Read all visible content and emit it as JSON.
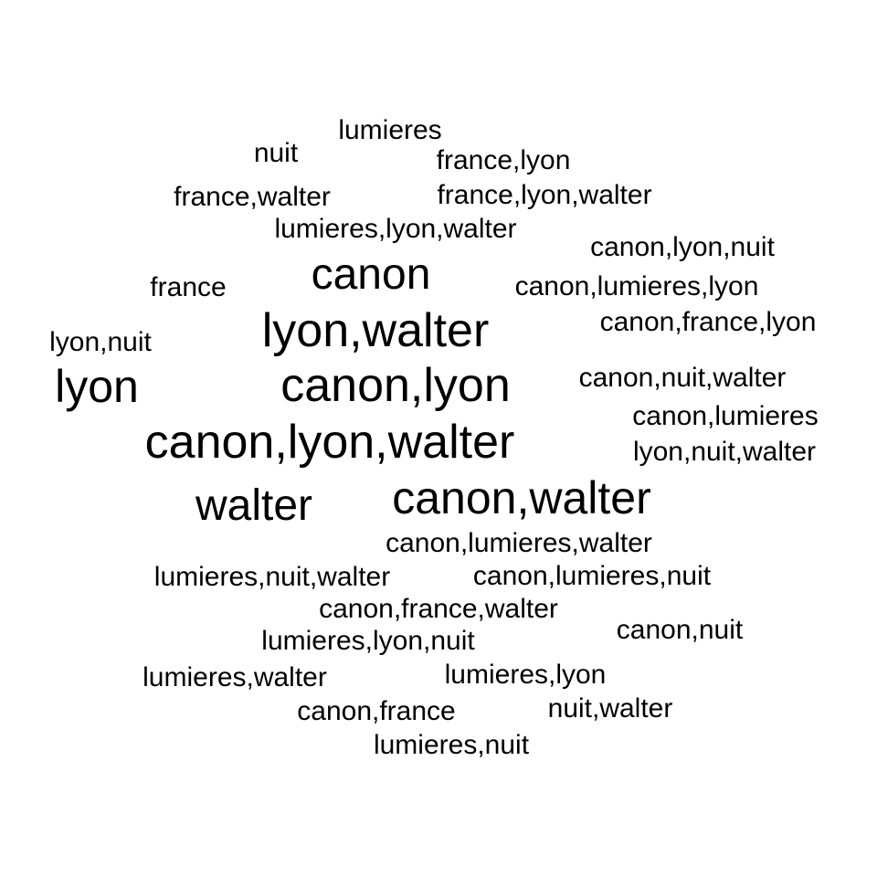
{
  "wordcloud": {
    "words": [
      {
        "text": "lumieres",
        "size_rank": 1
      },
      {
        "text": "nuit",
        "size_rank": 1
      },
      {
        "text": "france,lyon",
        "size_rank": 1
      },
      {
        "text": "france,walter",
        "size_rank": 1
      },
      {
        "text": "france,lyon,walter",
        "size_rank": 1
      },
      {
        "text": "lumieres,lyon,walter",
        "size_rank": 1
      },
      {
        "text": "canon,lyon,nuit",
        "size_rank": 1
      },
      {
        "text": "canon",
        "size_rank": 3
      },
      {
        "text": "france",
        "size_rank": 1
      },
      {
        "text": "canon,lumieres,lyon",
        "size_rank": 1
      },
      {
        "text": "lyon,walter",
        "size_rank": 5
      },
      {
        "text": "canon,france,lyon",
        "size_rank": 1
      },
      {
        "text": "lyon,nuit",
        "size_rank": 1
      },
      {
        "text": "lyon",
        "size_rank": 4
      },
      {
        "text": "canon,lyon",
        "size_rank": 5
      },
      {
        "text": "canon,nuit,walter",
        "size_rank": 1
      },
      {
        "text": "canon,lumieres",
        "size_rank": 1
      },
      {
        "text": "canon,lyon,walter",
        "size_rank": 5
      },
      {
        "text": "lyon,nuit,walter",
        "size_rank": 1
      },
      {
        "text": "walter",
        "size_rank": 3
      },
      {
        "text": "canon,walter",
        "size_rank": 4
      },
      {
        "text": "canon,lumieres,walter",
        "size_rank": 1
      },
      {
        "text": "lumieres,nuit,walter",
        "size_rank": 1
      },
      {
        "text": "canon,lumieres,nuit",
        "size_rank": 1
      },
      {
        "text": "canon,france,walter",
        "size_rank": 1
      },
      {
        "text": "lumieres,lyon,nuit",
        "size_rank": 1
      },
      {
        "text": "canon,nuit",
        "size_rank": 1
      },
      {
        "text": "lumieres,walter",
        "size_rank": 1
      },
      {
        "text": "lumieres,lyon",
        "size_rank": 1
      },
      {
        "text": "canon,france",
        "size_rank": 1
      },
      {
        "text": "nuit,walter",
        "size_rank": 1
      },
      {
        "text": "lumieres,nuit",
        "size_rank": 1
      }
    ],
    "text_color": "#000000",
    "background_color": "#ffffff"
  }
}
